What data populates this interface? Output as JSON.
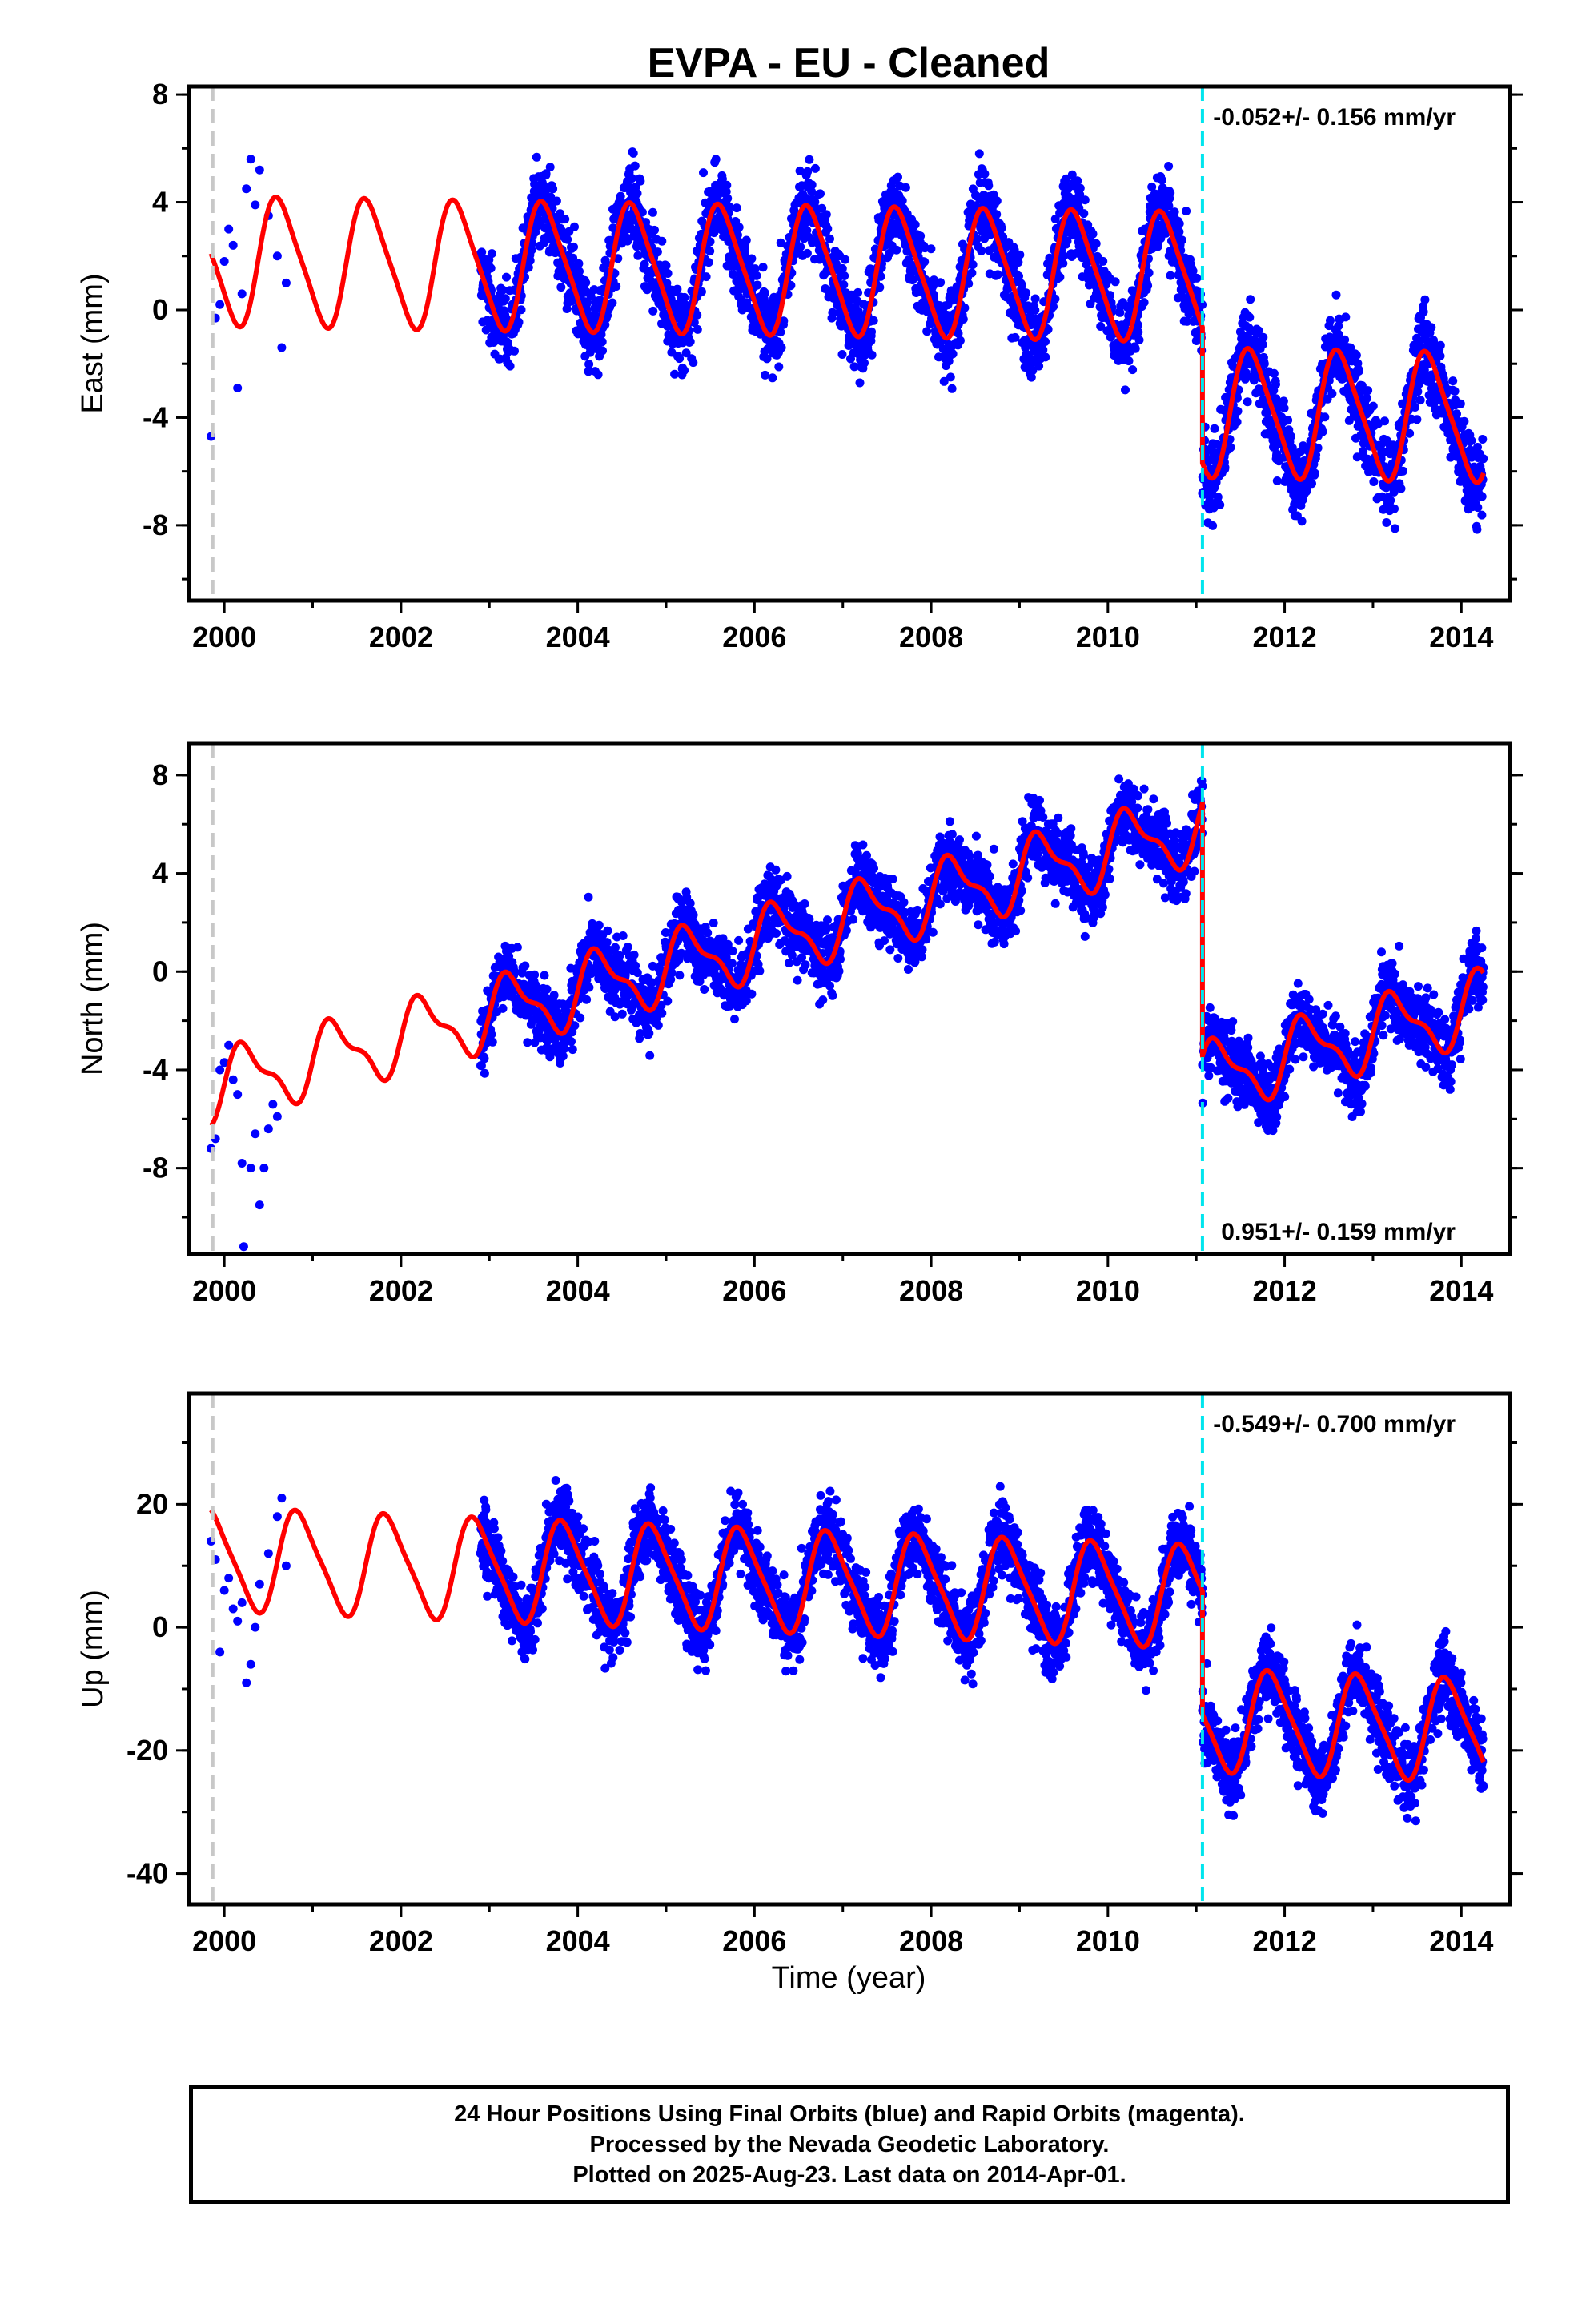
{
  "title": "EVPA  - EU - Cleaned",
  "xlabel": "Time (year)",
  "footer": {
    "line1": "24 Hour Positions Using Final Orbits (blue) and Rapid Orbits (magenta).",
    "line2": "Processed by the Nevada Geodetic Laboratory.",
    "line3": "Plotted on 2025-Aug-23. Last data on 2014-Apr-01."
  },
  "colors": {
    "data": "#0000ff",
    "model": "#ff0000",
    "break_start": "#c8c8c8",
    "break_equipment": "#00e5ee",
    "frame": "#000000"
  },
  "chart_data": [
    {
      "type": "scatter",
      "component": "east",
      "ylabel": "East (mm)",
      "rate_text": "-0.052+/- 0.156 mm/yr",
      "rate_position": "top-right",
      "xlim": [
        1999.6,
        2014.55
      ],
      "ylim": [
        -10.8,
        8.3
      ],
      "x_ticks": [
        "2000",
        "2002",
        "2004",
        "2006",
        "2008",
        "2010",
        "2012",
        "2014"
      ],
      "y_ticks": [
        "8",
        "4",
        "0",
        "-4",
        "-8"
      ],
      "y_tick_values": [
        8,
        4,
        0,
        -4,
        -8
      ],
      "breaks": [
        {
          "x": 1999.87,
          "kind": "start"
        },
        {
          "x": 2011.07,
          "kind": "equipment"
        }
      ],
      "segments": [
        {
          "x_start": 1999.85,
          "x_end": 2011.07,
          "offset": 1.8,
          "trend": -0.052,
          "amp1": 2.3,
          "phase1": 0.38,
          "amp2": 0.4,
          "data_start": 2002.9,
          "noise": 1.4
        },
        {
          "x_start": 2011.07,
          "x_end": 2014.25,
          "offset": -3.25,
          "trend": -0.052,
          "amp1": 2.3,
          "phase1": 0.38,
          "amp2": 0.4,
          "data_start": 2011.07,
          "noise": 1.4
        }
      ],
      "early_points": [
        [
          1999.85,
          -4.7
        ],
        [
          1999.9,
          -0.3
        ],
        [
          1999.95,
          0.2
        ],
        [
          2000.0,
          1.8
        ],
        [
          2000.05,
          3.0
        ],
        [
          2000.1,
          2.4
        ],
        [
          2000.15,
          -2.9
        ],
        [
          2000.2,
          0.6
        ],
        [
          2000.25,
          4.5
        ],
        [
          2000.3,
          5.6
        ],
        [
          2000.35,
          3.9
        ],
        [
          2000.4,
          5.2
        ],
        [
          2000.5,
          3.5
        ],
        [
          2000.6,
          2.0
        ],
        [
          2000.65,
          -1.4
        ],
        [
          2000.7,
          1.0
        ]
      ]
    },
    {
      "type": "scatter",
      "component": "north",
      "ylabel": "North (mm)",
      "rate_text": "0.951+/- 0.159 mm/yr",
      "rate_position": "bottom-right",
      "xlim": [
        1999.6,
        2014.55
      ],
      "ylim": [
        -11.5,
        9.3
      ],
      "x_ticks": [
        "2000",
        "2002",
        "2004",
        "2006",
        "2008",
        "2010",
        "2012",
        "2014"
      ],
      "y_ticks": [
        "8",
        "4",
        "0",
        "-4",
        "-8"
      ],
      "y_tick_values": [
        8,
        4,
        0,
        -4,
        -8
      ],
      "breaks": [
        {
          "x": 1999.87,
          "kind": "start"
        },
        {
          "x": 2011.07,
          "kind": "equipment"
        }
      ],
      "segments": [
        {
          "x_start": 1999.85,
          "x_end": 2011.07,
          "offset": -4.6,
          "trend": 0.951,
          "amp1": 1.3,
          "phase1": 0.0,
          "amp2": 0.5,
          "data_start": 2002.9,
          "noise": 1.3
        },
        {
          "x_start": 2011.07,
          "x_end": 2014.25,
          "offset": -14.9,
          "trend": 0.951,
          "amp1": 1.3,
          "phase1": 0.0,
          "amp2": 0.5,
          "data_start": 2011.07,
          "noise": 1.3
        }
      ],
      "early_points": [
        [
          1999.85,
          -7.2
        ],
        [
          1999.9,
          -6.8
        ],
        [
          1999.95,
          -4.0
        ],
        [
          2000.0,
          -3.7
        ],
        [
          2000.05,
          -3.0
        ],
        [
          2000.1,
          -4.4
        ],
        [
          2000.15,
          -5.0
        ],
        [
          2000.2,
          -7.8
        ],
        [
          2000.22,
          -11.2
        ],
        [
          2000.3,
          -8.0
        ],
        [
          2000.35,
          -6.6
        ],
        [
          2000.4,
          -9.5
        ],
        [
          2000.45,
          -8.0
        ],
        [
          2000.5,
          -6.4
        ],
        [
          2000.55,
          -5.4
        ],
        [
          2000.6,
          -5.9
        ]
      ]
    },
    {
      "type": "scatter",
      "component": "up",
      "ylabel": "Up (mm)",
      "rate_text": "-0.549+/- 0.700 mm/yr",
      "rate_position": "top-right",
      "xlim": [
        1999.6,
        2014.55
      ],
      "ylim": [
        -45,
        38
      ],
      "x_ticks": [
        "2000",
        "2002",
        "2004",
        "2006",
        "2008",
        "2010",
        "2012",
        "2014"
      ],
      "y_ticks": [
        "20",
        "0",
        "-20",
        "-40"
      ],
      "y_tick_values": [
        20,
        0,
        -20,
        -40
      ],
      "breaks": [
        {
          "x": 1999.87,
          "kind": "start"
        },
        {
          "x": 2011.07,
          "kind": "equipment"
        }
      ],
      "segments": [
        {
          "x_start": 1999.85,
          "x_end": 2011.07,
          "offset": 11.0,
          "trend": -0.549,
          "amp1": 8.0,
          "phase1": 0.6,
          "amp2": 1.5,
          "data_start": 2002.9,
          "noise": 5.5
        },
        {
          "x_start": 2011.07,
          "x_end": 2014.25,
          "offset": -9.0,
          "trend": -0.549,
          "amp1": 8.0,
          "phase1": 0.6,
          "amp2": 1.5,
          "data_start": 2011.07,
          "noise": 5.5
        }
      ],
      "early_points": [
        [
          1999.85,
          14.0
        ],
        [
          1999.9,
          11.0
        ],
        [
          1999.95,
          -4.0
        ],
        [
          2000.0,
          6.0
        ],
        [
          2000.05,
          8.0
        ],
        [
          2000.1,
          3.0
        ],
        [
          2000.15,
          1.0
        ],
        [
          2000.2,
          4.0
        ],
        [
          2000.25,
          -9.0
        ],
        [
          2000.3,
          -6.0
        ],
        [
          2000.35,
          0.0
        ],
        [
          2000.4,
          7.0
        ],
        [
          2000.5,
          12.0
        ],
        [
          2000.6,
          18.0
        ],
        [
          2000.65,
          21.0
        ],
        [
          2000.7,
          10.0
        ]
      ]
    }
  ]
}
